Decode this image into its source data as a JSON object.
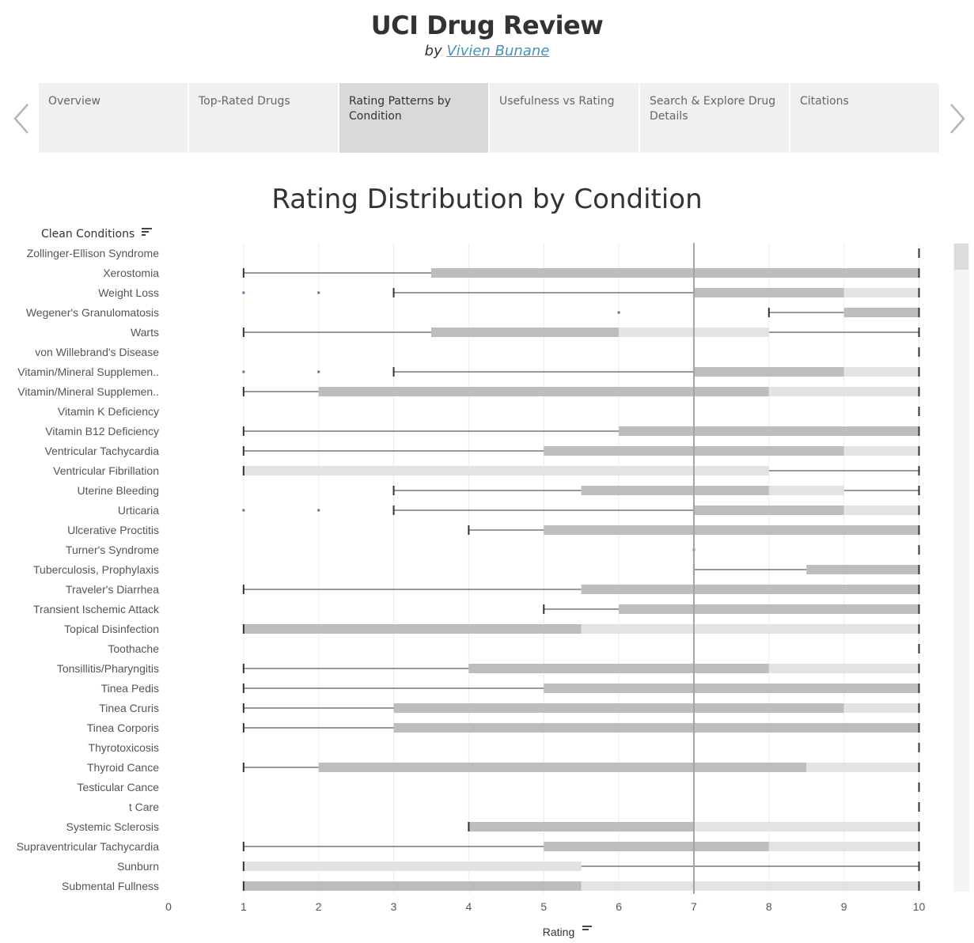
{
  "header": {
    "title": "UCI Drug Review",
    "by": "by",
    "author": "Vivien Bunane"
  },
  "tabs": [
    {
      "label": "Overview",
      "active": false
    },
    {
      "label": "Top-Rated Drugs",
      "active": false
    },
    {
      "label": "Rating Patterns by Condition",
      "active": true
    },
    {
      "label": "Usefulness vs Rating",
      "active": false
    },
    {
      "label": "Search & Explore Drug Details",
      "active": false
    },
    {
      "label": "Citations",
      "active": false
    }
  ],
  "icons": {
    "prev": "chevron-left-icon",
    "next": "chevron-right-icon",
    "sort": "sort-descending-icon"
  },
  "colors": {
    "box_lower": "#bdbdbd",
    "box_upper": "#e3e3e3",
    "whisker": "#333333",
    "outlier": "#4e79a7",
    "reference_line": "#a3a3a3",
    "link": "#4a90b8"
  },
  "chart_data": {
    "type": "boxplot",
    "title": "Rating Distribution by Condition",
    "ylabel": "Clean Conditions",
    "xlabel": "Rating",
    "xlim": [
      0,
      10
    ],
    "xticks": [
      0,
      1,
      2,
      3,
      4,
      5,
      6,
      7,
      8,
      9,
      10
    ],
    "reference_line": 7,
    "grid": true,
    "categories": [
      "Zollinger-Ellison Syndrome",
      "Xerostomia",
      "Weight Loss",
      "Wegener's Granulomatosis",
      "Warts",
      "von Willebrand's Disease",
      "Vitamin/Mineral Supplemen..",
      "Vitamin/Mineral Supplemen..",
      "Vitamin K Deficiency",
      "Vitamin B12 Deficiency",
      "Ventricular Tachycardia",
      "Ventricular Fibrillation",
      "Uterine Bleeding",
      "Urticaria",
      "Ulcerative Proctitis",
      "Turner's Syndrome",
      "Tuberculosis, Prophylaxis",
      "Traveler's Diarrhea",
      "Transient Ischemic Attack",
      "Topical Disinfection",
      "Toothache",
      "Tonsillitis/Pharyngitis",
      "Tinea Pedis",
      "Tinea Cruris",
      "Tinea Corporis",
      "Thyrotoxicosis",
      "Thyroid Cance",
      "Testicular Cance",
      "t Care",
      "Systemic Sclerosis",
      "Supraventricular Tachycardia",
      "Sunburn",
      "Submental Fullness"
    ],
    "boxes": [
      {
        "min": 10,
        "q1": 10,
        "median": 10,
        "q3": 10,
        "max": 10,
        "outliers": []
      },
      {
        "min": 1,
        "q1": 3.5,
        "median": 10,
        "q3": 10,
        "max": 10,
        "outliers": []
      },
      {
        "min": 3,
        "q1": 7,
        "median": 9,
        "q3": 10,
        "max": 10,
        "outliers": [
          1,
          2
        ]
      },
      {
        "min": 8,
        "q1": 9,
        "median": 10,
        "q3": 10,
        "max": 10,
        "outliers": [
          6
        ]
      },
      {
        "min": 1,
        "q1": 3.5,
        "median": 6,
        "q3": 8,
        "max": 10,
        "outliers": []
      },
      {
        "min": 10,
        "q1": 10,
        "median": 10,
        "q3": 10,
        "max": 10,
        "outliers": []
      },
      {
        "min": 3,
        "q1": 7,
        "median": 9,
        "q3": 10,
        "max": 10,
        "outliers": [
          1,
          2
        ]
      },
      {
        "min": 1,
        "q1": 2,
        "median": 8,
        "q3": 10,
        "max": 10,
        "outliers": []
      },
      {
        "min": 10,
        "q1": 10,
        "median": 10,
        "q3": 10,
        "max": 10,
        "outliers": []
      },
      {
        "min": 1,
        "q1": 6,
        "median": 10,
        "q3": 10,
        "max": 10,
        "outliers": []
      },
      {
        "min": 1,
        "q1": 5,
        "median": 9,
        "q3": 10,
        "max": 10,
        "outliers": []
      },
      {
        "min": 1,
        "q1": 1,
        "median": 1,
        "q3": 8,
        "max": 10,
        "outliers": []
      },
      {
        "min": 3,
        "q1": 5.5,
        "median": 8,
        "q3": 9,
        "max": 10,
        "outliers": []
      },
      {
        "min": 3,
        "q1": 7,
        "median": 9,
        "q3": 10,
        "max": 10,
        "outliers": [
          1,
          2
        ]
      },
      {
        "min": 4,
        "q1": 5,
        "median": 10,
        "q3": 10,
        "max": 10,
        "outliers": []
      },
      {
        "min": 10,
        "q1": 10,
        "median": 10,
        "q3": 10,
        "max": 10,
        "outliers": [
          7
        ]
      },
      {
        "min": 7,
        "q1": 8.5,
        "median": 10,
        "q3": 10,
        "max": 10,
        "outliers": []
      },
      {
        "min": 1,
        "q1": 5.5,
        "median": 10,
        "q3": 10,
        "max": 10,
        "outliers": []
      },
      {
        "min": 5,
        "q1": 6,
        "median": 10,
        "q3": 10,
        "max": 10,
        "outliers": []
      },
      {
        "min": 1,
        "q1": 1,
        "median": 5.5,
        "q3": 10,
        "max": 10,
        "outliers": []
      },
      {
        "min": 10,
        "q1": 10,
        "median": 10,
        "q3": 10,
        "max": 10,
        "outliers": []
      },
      {
        "min": 1,
        "q1": 4,
        "median": 8,
        "q3": 10,
        "max": 10,
        "outliers": []
      },
      {
        "min": 1,
        "q1": 5,
        "median": 10,
        "q3": 10,
        "max": 10,
        "outliers": []
      },
      {
        "min": 1,
        "q1": 3,
        "median": 9,
        "q3": 10,
        "max": 10,
        "outliers": []
      },
      {
        "min": 1,
        "q1": 3,
        "median": 10,
        "q3": 10,
        "max": 10,
        "outliers": []
      },
      {
        "min": 10,
        "q1": 10,
        "median": 10,
        "q3": 10,
        "max": 10,
        "outliers": []
      },
      {
        "min": 1,
        "q1": 2,
        "median": 8.5,
        "q3": 10,
        "max": 10,
        "outliers": []
      },
      {
        "min": 10,
        "q1": 10,
        "median": 10,
        "q3": 10,
        "max": 10,
        "outliers": []
      },
      {
        "min": 10,
        "q1": 10,
        "median": 10,
        "q3": 10,
        "max": 10,
        "outliers": []
      },
      {
        "min": 4,
        "q1": 4,
        "median": 7,
        "q3": 10,
        "max": 10,
        "outliers": []
      },
      {
        "min": 1,
        "q1": 5,
        "median": 8,
        "q3": 10,
        "max": 10,
        "outliers": []
      },
      {
        "min": 1,
        "q1": 1,
        "median": 1,
        "q3": 5.5,
        "max": 10,
        "outliers": []
      },
      {
        "min": 1,
        "q1": 1,
        "median": 5.5,
        "q3": 10,
        "max": 10,
        "outliers": []
      }
    ]
  }
}
